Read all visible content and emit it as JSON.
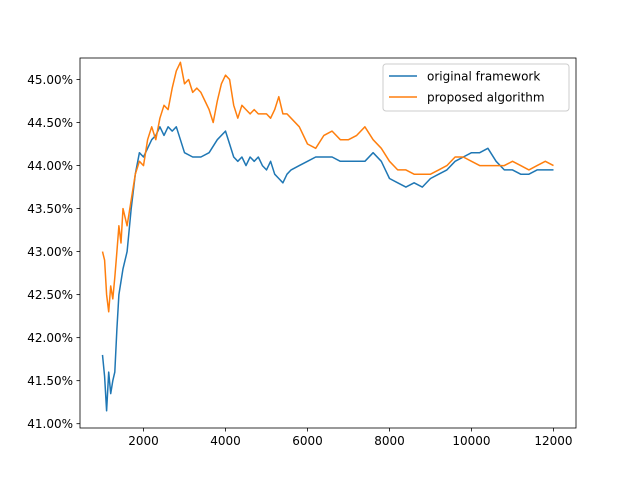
{
  "chart_data": {
    "type": "line",
    "title": "",
    "xlabel": "",
    "ylabel": "",
    "xlim": [
      450,
      12550
    ],
    "ylim": [
      40.95,
      45.25
    ],
    "x_ticks": [
      2000,
      4000,
      6000,
      8000,
      10000,
      12000
    ],
    "x_tick_labels": [
      "2000",
      "4000",
      "6000",
      "8000",
      "10000",
      "12000"
    ],
    "y_ticks": [
      41.0,
      41.5,
      42.0,
      42.5,
      43.0,
      43.5,
      44.0,
      44.5,
      45.0
    ],
    "y_tick_labels": [
      "41.00%",
      "41.50%",
      "42.00%",
      "42.50%",
      "43.00%",
      "43.50%",
      "44.00%",
      "44.50%",
      "45.00%"
    ],
    "grid": false,
    "legend_position": "top-right",
    "series": [
      {
        "name": "original framework",
        "color": "#1f77b4",
        "points": [
          [
            1000,
            41.8
          ],
          [
            1050,
            41.55
          ],
          [
            1100,
            41.15
          ],
          [
            1150,
            41.6
          ],
          [
            1200,
            41.35
          ],
          [
            1250,
            41.5
          ],
          [
            1300,
            41.6
          ],
          [
            1350,
            42.1
          ],
          [
            1400,
            42.5
          ],
          [
            1500,
            42.8
          ],
          [
            1600,
            43.0
          ],
          [
            1700,
            43.5
          ],
          [
            1800,
            43.9
          ],
          [
            1900,
            44.15
          ],
          [
            2000,
            44.1
          ],
          [
            2100,
            44.2
          ],
          [
            2200,
            44.3
          ],
          [
            2300,
            44.35
          ],
          [
            2400,
            44.45
          ],
          [
            2500,
            44.35
          ],
          [
            2600,
            44.45
          ],
          [
            2700,
            44.4
          ],
          [
            2800,
            44.45
          ],
          [
            2900,
            44.3
          ],
          [
            3000,
            44.15
          ],
          [
            3200,
            44.1
          ],
          [
            3400,
            44.1
          ],
          [
            3600,
            44.15
          ],
          [
            3800,
            44.3
          ],
          [
            4000,
            44.4
          ],
          [
            4100,
            44.25
          ],
          [
            4200,
            44.1
          ],
          [
            4300,
            44.05
          ],
          [
            4400,
            44.1
          ],
          [
            4500,
            44.0
          ],
          [
            4600,
            44.1
          ],
          [
            4700,
            44.05
          ],
          [
            4800,
            44.1
          ],
          [
            4900,
            44.0
          ],
          [
            5000,
            43.95
          ],
          [
            5100,
            44.05
          ],
          [
            5200,
            43.9
          ],
          [
            5300,
            43.85
          ],
          [
            5400,
            43.8
          ],
          [
            5500,
            43.9
          ],
          [
            5600,
            43.95
          ],
          [
            5800,
            44.0
          ],
          [
            6000,
            44.05
          ],
          [
            6200,
            44.1
          ],
          [
            6400,
            44.1
          ],
          [
            6600,
            44.1
          ],
          [
            6800,
            44.05
          ],
          [
            7000,
            44.05
          ],
          [
            7200,
            44.05
          ],
          [
            7400,
            44.05
          ],
          [
            7600,
            44.15
          ],
          [
            7800,
            44.05
          ],
          [
            7900,
            43.95
          ],
          [
            8000,
            43.85
          ],
          [
            8200,
            43.8
          ],
          [
            8400,
            43.75
          ],
          [
            8600,
            43.8
          ],
          [
            8800,
            43.75
          ],
          [
            9000,
            43.85
          ],
          [
            9200,
            43.9
          ],
          [
            9400,
            43.95
          ],
          [
            9600,
            44.05
          ],
          [
            9800,
            44.1
          ],
          [
            10000,
            44.15
          ],
          [
            10200,
            44.15
          ],
          [
            10400,
            44.2
          ],
          [
            10600,
            44.05
          ],
          [
            10800,
            43.95
          ],
          [
            11000,
            43.95
          ],
          [
            11200,
            43.9
          ],
          [
            11400,
            43.9
          ],
          [
            11600,
            43.95
          ],
          [
            11800,
            43.95
          ],
          [
            12000,
            43.95
          ]
        ]
      },
      {
        "name": "proposed algorithm",
        "color": "#ff7f0e",
        "points": [
          [
            1000,
            43.0
          ],
          [
            1050,
            42.9
          ],
          [
            1100,
            42.5
          ],
          [
            1150,
            42.3
          ],
          [
            1200,
            42.6
          ],
          [
            1250,
            42.45
          ],
          [
            1300,
            42.7
          ],
          [
            1350,
            43.0
          ],
          [
            1400,
            43.3
          ],
          [
            1450,
            43.1
          ],
          [
            1500,
            43.5
          ],
          [
            1600,
            43.3
          ],
          [
            1700,
            43.6
          ],
          [
            1800,
            43.9
          ],
          [
            1900,
            44.05
          ],
          [
            2000,
            44.0
          ],
          [
            2100,
            44.3
          ],
          [
            2200,
            44.45
          ],
          [
            2300,
            44.3
          ],
          [
            2400,
            44.55
          ],
          [
            2500,
            44.7
          ],
          [
            2600,
            44.65
          ],
          [
            2700,
            44.9
          ],
          [
            2800,
            45.1
          ],
          [
            2900,
            45.2
          ],
          [
            3000,
            44.95
          ],
          [
            3100,
            45.0
          ],
          [
            3200,
            44.85
          ],
          [
            3300,
            44.9
          ],
          [
            3400,
            44.85
          ],
          [
            3500,
            44.75
          ],
          [
            3600,
            44.65
          ],
          [
            3700,
            44.5
          ],
          [
            3800,
            44.75
          ],
          [
            3900,
            44.95
          ],
          [
            4000,
            45.05
          ],
          [
            4100,
            45.0
          ],
          [
            4200,
            44.7
          ],
          [
            4300,
            44.55
          ],
          [
            4400,
            44.7
          ],
          [
            4500,
            44.65
          ],
          [
            4600,
            44.6
          ],
          [
            4700,
            44.65
          ],
          [
            4800,
            44.6
          ],
          [
            4900,
            44.6
          ],
          [
            5000,
            44.6
          ],
          [
            5100,
            44.55
          ],
          [
            5200,
            44.65
          ],
          [
            5300,
            44.8
          ],
          [
            5400,
            44.6
          ],
          [
            5500,
            44.6
          ],
          [
            5600,
            44.55
          ],
          [
            5800,
            44.45
          ],
          [
            6000,
            44.25
          ],
          [
            6200,
            44.2
          ],
          [
            6400,
            44.35
          ],
          [
            6600,
            44.4
          ],
          [
            6800,
            44.3
          ],
          [
            7000,
            44.3
          ],
          [
            7200,
            44.35
          ],
          [
            7400,
            44.45
          ],
          [
            7600,
            44.3
          ],
          [
            7800,
            44.2
          ],
          [
            8000,
            44.05
          ],
          [
            8200,
            43.95
          ],
          [
            8400,
            43.95
          ],
          [
            8600,
            43.9
          ],
          [
            8800,
            43.9
          ],
          [
            9000,
            43.9
          ],
          [
            9200,
            43.95
          ],
          [
            9400,
            44.0
          ],
          [
            9600,
            44.1
          ],
          [
            9800,
            44.1
          ],
          [
            10000,
            44.05
          ],
          [
            10200,
            44.0
          ],
          [
            10400,
            44.0
          ],
          [
            10600,
            44.0
          ],
          [
            10800,
            44.0
          ],
          [
            11000,
            44.05
          ],
          [
            11200,
            44.0
          ],
          [
            11400,
            43.95
          ],
          [
            11600,
            44.0
          ],
          [
            11800,
            44.05
          ],
          [
            12000,
            44.0
          ]
        ]
      }
    ]
  }
}
